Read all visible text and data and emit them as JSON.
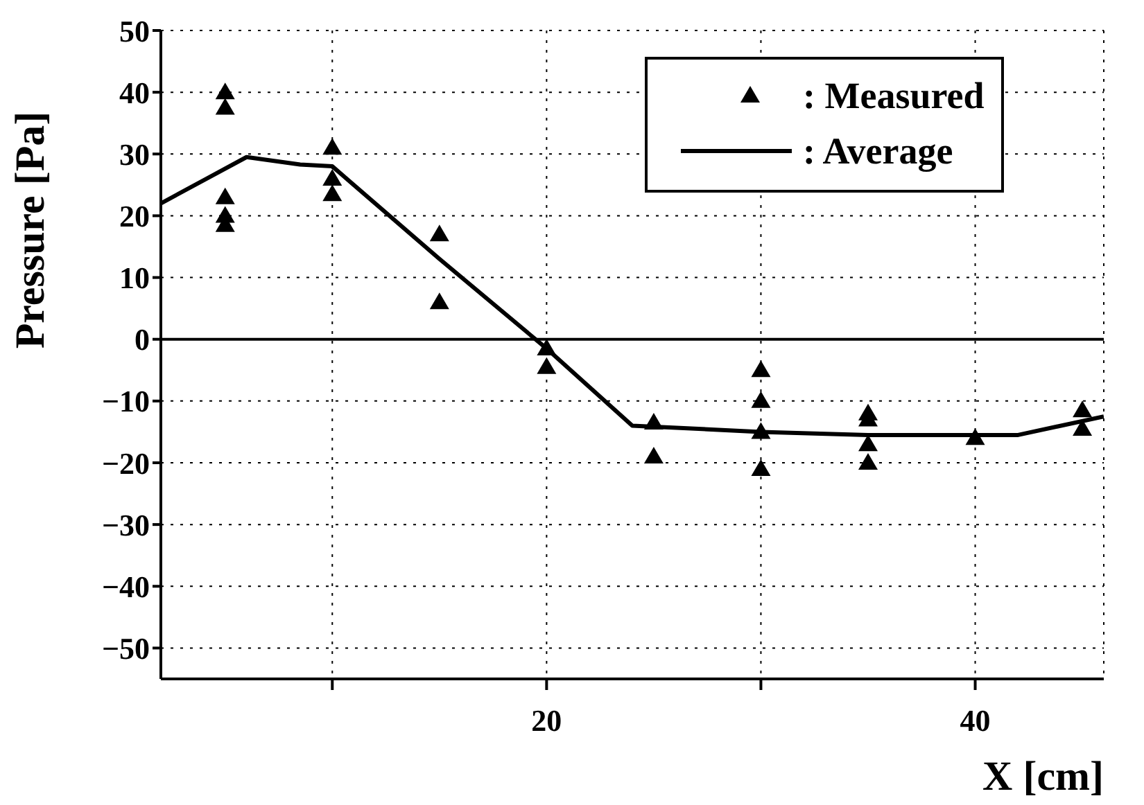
{
  "chart_data": {
    "type": "scatter",
    "xlabel": "X [cm]",
    "ylabel": "Pressure [Pa]",
    "xlim": [
      2,
      46
    ],
    "xticks": [
      {
        "value": 10,
        "label": null
      },
      20,
      {
        "value": 30,
        "label": null
      },
      40
    ],
    "ylim": [
      -55,
      50
    ],
    "yticks": [
      -50,
      -40,
      -30,
      -20,
      -10,
      0,
      10,
      20,
      30,
      40,
      50
    ],
    "grid": true,
    "legend": "top right",
    "ref_lines": [
      {
        "axis": "y",
        "value": 0,
        "color": "#000000",
        "line_style": "solid"
      }
    ],
    "series": [
      {
        "name": ": Measured",
        "color": "#000000",
        "marker": "triangle",
        "x": [
          5,
          5,
          5,
          5,
          5,
          10,
          10,
          10,
          15,
          15,
          20,
          20,
          25,
          25,
          30,
          30,
          30,
          30,
          35,
          35,
          35,
          35,
          40,
          45,
          45
        ],
        "values": [
          40,
          37.5,
          23,
          20,
          18.5,
          31,
          26,
          23.5,
          17,
          6,
          -1.5,
          -4.5,
          -13.5,
          -19,
          -5,
          -10,
          -15,
          -21,
          -12,
          -13,
          -17,
          -20,
          -16,
          -11.5,
          -14.5
        ]
      },
      {
        "name": ": Average",
        "type": "line",
        "color": "#000000",
        "marker": "none",
        "line_style": "solid",
        "x": [
          2,
          6,
          8.5,
          10,
          15,
          20,
          24,
          30,
          35,
          42,
          46
        ],
        "values": [
          22,
          29.5,
          28.3,
          28,
          13,
          -1.5,
          -14,
          -15,
          -15.5,
          -15.5,
          -12.5
        ]
      }
    ]
  }
}
